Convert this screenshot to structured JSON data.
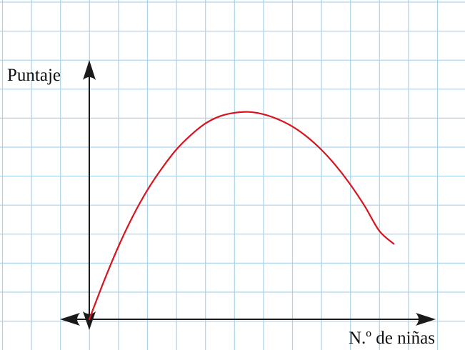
{
  "colors": {
    "grid": "#a9d4ea",
    "axis": "#1a1a1a",
    "curve": "#d8141f",
    "background": "#ffffff"
  },
  "chart_data": {
    "type": "line",
    "title": "",
    "ylabel": "Puntaje",
    "xlabel": "N.º de niñas",
    "xlim": [
      -1,
      12
    ],
    "ylim": [
      -0.5,
      9
    ],
    "grid": true,
    "ticks_labeled": false,
    "series": [
      {
        "color": "#d8141f",
        "x": [
          0,
          0.5,
          1,
          1.5,
          2,
          2.5,
          3,
          3.5,
          4,
          4.5,
          5,
          5.5,
          6,
          6.5,
          7,
          7.5,
          8,
          8.5,
          9,
          9.5,
          10,
          10.5
        ],
        "y": [
          0,
          1.3,
          2.5,
          3.55,
          4.45,
          5.2,
          5.85,
          6.35,
          6.75,
          7.0,
          7.12,
          7.15,
          7.07,
          6.9,
          6.65,
          6.3,
          5.85,
          5.3,
          4.65,
          3.9,
          3.05,
          2.6
        ]
      }
    ]
  }
}
